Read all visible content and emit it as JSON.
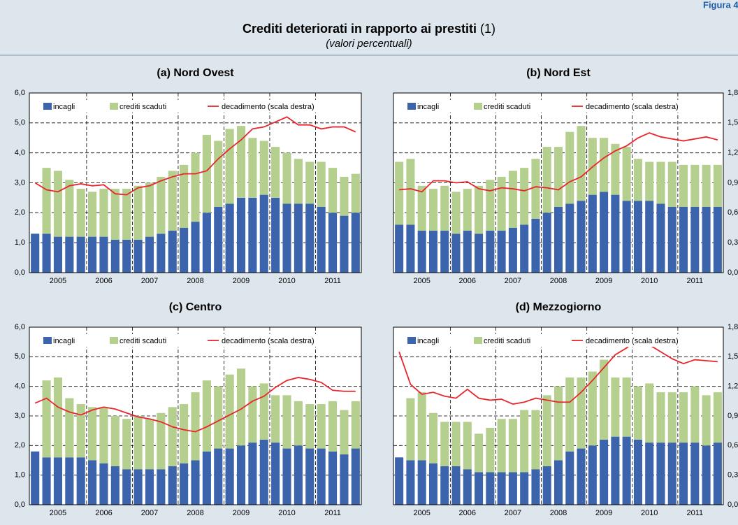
{
  "figure_label": "Figura 4.",
  "title": "Crediti deteriorati in rapporto ai prestiti",
  "title_note": "(1)",
  "subtitle": "(valori percentuali)",
  "chart_data": [
    {
      "type": "combo",
      "title": "(a) Nord Ovest",
      "categories": [
        null,
        null,
        "2005",
        null,
        null,
        null,
        "2006",
        null,
        null,
        null,
        "2007",
        null,
        null,
        null,
        "2008",
        null,
        null,
        null,
        "2009",
        null,
        null,
        null,
        "2010",
        null,
        null,
        null,
        "2011",
        null,
        null
      ],
      "series": [
        {
          "name": "incagli",
          "color": "#3b64ad",
          "values": [
            1.3,
            1.3,
            1.2,
            1.2,
            1.2,
            1.2,
            1.2,
            1.1,
            1.1,
            1.1,
            1.2,
            1.3,
            1.4,
            1.5,
            1.7,
            2.0,
            2.2,
            2.3,
            2.5,
            2.5,
            2.6,
            2.5,
            2.3,
            2.3,
            2.3,
            2.2,
            2.0,
            1.9,
            2.0
          ]
        },
        {
          "name": "crediti scaduti",
          "color": "#b5cf8e",
          "values": [
            null,
            2.2,
            2.2,
            1.9,
            1.6,
            1.5,
            1.6,
            1.7,
            1.7,
            1.8,
            1.8,
            1.9,
            2.0,
            2.1,
            2.3,
            2.6,
            2.2,
            2.5,
            2.4,
            2.0,
            1.8,
            1.7,
            1.7,
            1.5,
            1.4,
            1.5,
            1.5,
            1.3,
            1.3
          ]
        },
        {
          "name": "decadimento (scala destra)",
          "color": "#e8262b",
          "axis": "y2",
          "values": [
            0.9,
            0.83,
            0.81,
            0.87,
            0.89,
            0.87,
            0.88,
            0.79,
            0.78,
            0.85,
            0.87,
            0.92,
            0.96,
            0.99,
            0.99,
            1.02,
            1.14,
            1.24,
            1.33,
            1.44,
            1.46,
            1.51,
            1.56,
            1.48,
            1.48,
            1.44,
            1.46,
            1.46,
            1.41
          ]
        }
      ],
      "ylim": [
        0,
        6
      ],
      "yticks": [
        {
          "value": 0,
          "label": "0,0"
        },
        {
          "value": 1,
          "label": "1,0"
        },
        {
          "value": 2,
          "label": "2,0"
        },
        {
          "value": 3,
          "label": "3,0"
        },
        {
          "value": 4,
          "label": "4,0"
        },
        {
          "value": 5,
          "label": "5,0"
        },
        {
          "value": 6,
          "label": "6,0"
        }
      ],
      "y2lim": [
        0,
        1.8
      ],
      "grid": true
    },
    {
      "type": "combo",
      "title": "(b) Nord Est",
      "categories": [
        null,
        null,
        "2005",
        null,
        null,
        null,
        "2006",
        null,
        null,
        null,
        "2007",
        null,
        null,
        null,
        "2008",
        null,
        null,
        null,
        "2009",
        null,
        null,
        null,
        "2010",
        null,
        null,
        null,
        "2011",
        null,
        null
      ],
      "series": [
        {
          "name": "incagli",
          "color": "#3b64ad",
          "values": [
            1.6,
            1.6,
            1.4,
            1.4,
            1.4,
            1.3,
            1.4,
            1.3,
            1.4,
            1.4,
            1.5,
            1.6,
            1.8,
            2.0,
            2.2,
            2.3,
            2.4,
            2.6,
            2.7,
            2.6,
            2.4,
            2.4,
            2.4,
            2.3,
            2.2,
            2.2,
            2.2,
            2.2,
            2.2
          ]
        },
        {
          "name": "crediti scaduti",
          "color": "#b5cf8e",
          "values": [
            2.1,
            2.2,
            1.5,
            1.4,
            1.5,
            1.4,
            1.4,
            1.6,
            1.7,
            1.8,
            1.9,
            1.9,
            2.0,
            2.2,
            2.0,
            2.4,
            2.5,
            1.9,
            1.8,
            1.7,
            1.8,
            1.4,
            1.3,
            1.4,
            1.5,
            1.4,
            1.4,
            1.4,
            1.4
          ]
        },
        {
          "name": "decadimento (scala destra)",
          "color": "#e8262b",
          "axis": "y2",
          "values": [
            0.83,
            0.84,
            0.81,
            0.92,
            0.92,
            0.9,
            0.91,
            0.84,
            0.82,
            0.85,
            0.84,
            0.82,
            0.86,
            0.85,
            0.83,
            0.91,
            0.96,
            1.06,
            1.15,
            1.22,
            1.27,
            1.35,
            1.4,
            1.36,
            1.34,
            1.32,
            1.34,
            1.36,
            1.33
          ]
        }
      ],
      "ylim": [
        0,
        6
      ],
      "y2lim": [
        0,
        1.8
      ],
      "y2ticks": [
        {
          "value": 0,
          "label": "0,0"
        },
        {
          "value": 0.3,
          "label": "0,3"
        },
        {
          "value": 0.6,
          "label": "0,6"
        },
        {
          "value": 0.9,
          "label": "0,9"
        },
        {
          "value": 1.2,
          "label": "1,2"
        },
        {
          "value": 1.5,
          "label": "1,5"
        },
        {
          "value": 1.8,
          "label": "1,8"
        }
      ],
      "grid": true
    },
    {
      "type": "combo",
      "title": "(c) Centro",
      "categories": [
        null,
        null,
        "2005",
        null,
        null,
        null,
        "2006",
        null,
        null,
        null,
        "2007",
        null,
        null,
        null,
        "2008",
        null,
        null,
        null,
        "2009",
        null,
        null,
        null,
        "2010",
        null,
        null,
        null,
        "2011",
        null,
        null
      ],
      "series": [
        {
          "name": "incagli",
          "color": "#3b64ad",
          "values": [
            1.8,
            1.6,
            1.6,
            1.6,
            1.6,
            1.5,
            1.4,
            1.3,
            1.2,
            1.2,
            1.2,
            1.2,
            1.3,
            1.4,
            1.5,
            1.8,
            1.9,
            1.9,
            2.0,
            2.1,
            2.2,
            2.1,
            1.9,
            2.0,
            1.9,
            1.9,
            1.8,
            1.7,
            1.9
          ]
        },
        {
          "name": "crediti scaduti",
          "color": "#b5cf8e",
          "values": [
            null,
            2.6,
            2.7,
            2.0,
            1.8,
            1.8,
            1.9,
            1.7,
            1.7,
            1.8,
            1.7,
            1.9,
            2.0,
            2.0,
            2.3,
            2.4,
            2.1,
            2.5,
            2.6,
            1.9,
            1.9,
            1.6,
            1.8,
            1.5,
            1.5,
            1.5,
            1.7,
            1.5,
            1.6
          ]
        },
        {
          "name": "decadimento (scala destra)",
          "color": "#e8262b",
          "axis": "y2",
          "values": [
            1.03,
            1.08,
            0.99,
            0.94,
            0.91,
            0.96,
            0.99,
            0.97,
            0.93,
            0.89,
            0.87,
            0.84,
            0.79,
            0.76,
            0.74,
            0.79,
            0.85,
            0.91,
            0.97,
            1.05,
            1.1,
            1.19,
            1.26,
            1.29,
            1.27,
            1.24,
            1.16,
            1.15,
            1.15
          ]
        }
      ],
      "ylim": [
        0,
        6
      ],
      "yticks": [
        {
          "value": 0,
          "label": "0,0"
        },
        {
          "value": 1,
          "label": "1,0"
        },
        {
          "value": 2,
          "label": "2,0"
        },
        {
          "value": 3,
          "label": "3,0"
        },
        {
          "value": 4,
          "label": "4,0"
        },
        {
          "value": 5,
          "label": "5,0"
        },
        {
          "value": 6,
          "label": "6,0"
        }
      ],
      "y2lim": [
        0,
        1.8
      ],
      "grid": true
    },
    {
      "type": "combo",
      "title": "(d) Mezzogiorno",
      "categories": [
        null,
        null,
        "2005",
        null,
        null,
        null,
        "2006",
        null,
        null,
        null,
        "2007",
        null,
        null,
        null,
        "2008",
        null,
        null,
        null,
        "2009",
        null,
        null,
        null,
        "2010",
        null,
        null,
        null,
        "2011",
        null,
        null
      ],
      "series": [
        {
          "name": "incagli",
          "color": "#3b64ad",
          "values": [
            1.6,
            1.5,
            1.5,
            1.4,
            1.3,
            1.3,
            1.2,
            1.1,
            1.1,
            1.1,
            1.1,
            1.1,
            1.2,
            1.3,
            1.5,
            1.8,
            1.9,
            2.0,
            2.2,
            2.3,
            2.3,
            2.2,
            2.1,
            2.1,
            2.1,
            2.1,
            2.1,
            2.0,
            2.1
          ]
        },
        {
          "name": "crediti scaduti",
          "color": "#b5cf8e",
          "values": [
            null,
            2.1,
            2.3,
            1.7,
            1.5,
            1.5,
            1.6,
            1.3,
            1.5,
            1.8,
            1.8,
            2.1,
            2.0,
            2.4,
            2.5,
            2.5,
            2.4,
            2.5,
            2.7,
            2.0,
            2.0,
            1.8,
            2.0,
            1.7,
            1.7,
            1.7,
            1.9,
            1.7,
            1.7
          ]
        },
        {
          "name": "decadimento (scala destra)",
          "color": "#e8262b",
          "axis": "y2",
          "values": [
            1.55,
            1.22,
            1.12,
            1.14,
            1.1,
            1.08,
            1.17,
            1.08,
            1.06,
            1.07,
            1.02,
            1.04,
            1.08,
            1.06,
            1.04,
            1.04,
            1.14,
            1.26,
            1.39,
            1.52,
            1.59,
            1.69,
            1.62,
            1.55,
            1.48,
            1.43,
            1.47,
            1.46,
            1.45
          ]
        }
      ],
      "ylim": [
        0,
        6
      ],
      "y2lim": [
        0,
        1.8
      ],
      "y2ticks": [
        {
          "value": 0,
          "label": "0,0"
        },
        {
          "value": 0.3,
          "label": "0,3"
        },
        {
          "value": 0.6,
          "label": "0,6"
        },
        {
          "value": 0.9,
          "label": "0,9"
        },
        {
          "value": 1.2,
          "label": "1,2"
        },
        {
          "value": 1.5,
          "label": "1,5"
        },
        {
          "value": 1.8,
          "label": "1,8"
        }
      ],
      "grid": true
    }
  ]
}
